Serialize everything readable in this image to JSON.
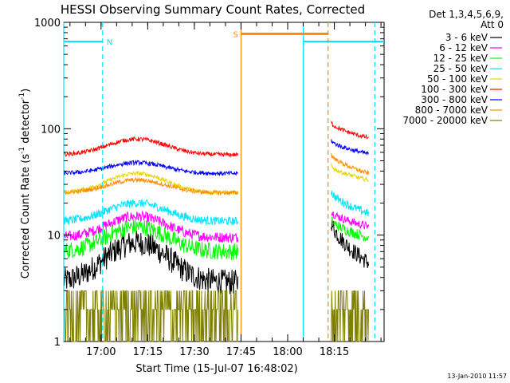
{
  "chart_data": {
    "type": "line",
    "title": "HESSI Observing Summary Count Rates, Corrected",
    "xlabel": "Start Time (15-Jul-07 16:48:02)",
    "ylabel_parts": [
      "Corrected Count Rate (s",
      "-1",
      " detector",
      "-1",
      ")"
    ],
    "x_range": [
      "16:48:02",
      "18:31:00"
    ],
    "xlim_min": [
      0,
      103
    ],
    "ylim": [
      1,
      1000
    ],
    "y_scale": "log",
    "x_ticks": [
      {
        "label": "17:00",
        "min": 12
      },
      {
        "label": "17:15",
        "min": 27
      },
      {
        "label": "17:30",
        "min": 42
      },
      {
        "label": "17:45",
        "min": 57
      },
      {
        "label": "18:00",
        "min": 72
      },
      {
        "label": "18:15",
        "min": 87
      }
    ],
    "y_ticks": [
      {
        "label": "1",
        "value": 1
      },
      {
        "label": "10",
        "value": 10
      },
      {
        "label": "100",
        "value": 100
      },
      {
        "label": "1000",
        "value": 1000
      }
    ],
    "legend_title": [
      "Det 1,3,4,5,6,9,",
      "Att 0"
    ],
    "legend_position": "right",
    "series": [
      {
        "name": "3 - 6 keV",
        "color": "#000000",
        "segments": [
          {
            "t0": 0,
            "t1": 56,
            "kind": "bump",
            "base": 3.6,
            "peak": 8.5,
            "noise": 0.12
          },
          {
            "t0": 86,
            "t1": 98,
            "kind": "decay",
            "v0": 14,
            "v1": 5.5,
            "noise": 0.08
          }
        ]
      },
      {
        "name": "6 - 12 keV",
        "color": "#ff00ff",
        "segments": [
          {
            "t0": 0,
            "t1": 56,
            "kind": "bump",
            "base": 9.5,
            "peak": 15,
            "noise": 0.05
          },
          {
            "t0": 86,
            "t1": 98,
            "kind": "decay",
            "v0": 17,
            "v1": 12,
            "noise": 0.04
          }
        ]
      },
      {
        "name": "12 - 25 keV",
        "color": "#00ff00",
        "segments": [
          {
            "t0": 0,
            "t1": 56,
            "kind": "bump",
            "base": 7,
            "peak": 12,
            "noise": 0.08
          },
          {
            "t0": 86,
            "t1": 98,
            "kind": "decay",
            "v0": 14,
            "v1": 9.5,
            "noise": 0.05
          }
        ]
      },
      {
        "name": "25 - 50 keV",
        "color": "#00e5ff",
        "segments": [
          {
            "t0": 0,
            "t1": 56,
            "kind": "bump",
            "base": 13.5,
            "peak": 20,
            "noise": 0.04
          },
          {
            "t0": 86,
            "t1": 98,
            "kind": "decay",
            "v0": 26,
            "v1": 16,
            "noise": 0.04
          }
        ]
      },
      {
        "name": "50 - 100 keV",
        "color": "#e6d300",
        "segments": [
          {
            "t0": 0,
            "t1": 56,
            "kind": "bump",
            "base": 25,
            "peak": 38,
            "noise": 0.02
          },
          {
            "t0": 86,
            "t1": 98,
            "kind": "decay",
            "v0": 45,
            "v1": 33,
            "noise": 0.02
          }
        ]
      },
      {
        "name": "100 - 300 keV",
        "color": "#ff0000",
        "segments": [
          {
            "t0": 0,
            "t1": 56,
            "kind": "bump",
            "base": 57,
            "peak": 80,
            "noise": 0.02
          },
          {
            "t0": 86,
            "t1": 98,
            "kind": "decay",
            "v0": 115,
            "v1": 82,
            "noise": 0.02
          }
        ]
      },
      {
        "name": "300 - 800 keV",
        "color": "#0000ff",
        "segments": [
          {
            "t0": 0,
            "t1": 56,
            "kind": "bump",
            "base": 38,
            "peak": 48,
            "noise": 0.02
          },
          {
            "t0": 86,
            "t1": 98,
            "kind": "decay",
            "v0": 78,
            "v1": 58,
            "noise": 0.02
          }
        ]
      },
      {
        "name": "800 - 7000 keV",
        "color": "#ff8c00",
        "segments": [
          {
            "t0": 0,
            "t1": 56,
            "kind": "bump",
            "base": 25,
            "peak": 33,
            "noise": 0.02
          },
          {
            "t0": 86,
            "t1": 98,
            "kind": "decay",
            "v0": 58,
            "v1": 38,
            "noise": 0.02
          }
        ]
      },
      {
        "name": "7000 - 20000 keV",
        "color": "#808000",
        "segments": [
          {
            "t0": 0,
            "t1": 56,
            "kind": "steps",
            "levels": [
              1,
              2,
              3
            ],
            "noise": 0
          },
          {
            "t0": 86,
            "t1": 98,
            "kind": "steps",
            "levels": [
              1,
              2,
              3
            ],
            "noise": 0
          }
        ]
      }
    ],
    "flags": {
      "night": {
        "label": "N",
        "color": "#00e5ff",
        "intervals": [
          [
            0,
            12.5
          ],
          [
            77,
            103
          ]
        ],
        "level": 660,
        "dashed_at": [
          12.5,
          100
        ],
        "solid_at": [
          0,
          77
        ]
      },
      "saa": {
        "label": "S",
        "color": "#ff8c00",
        "intervals": [
          [
            57,
            85
          ]
        ],
        "level": 780,
        "dashed_at": [
          85
        ],
        "solid_at": [
          57
        ]
      }
    }
  },
  "footer": {
    "timestamp": "13-Jan-2010 11:57"
  }
}
